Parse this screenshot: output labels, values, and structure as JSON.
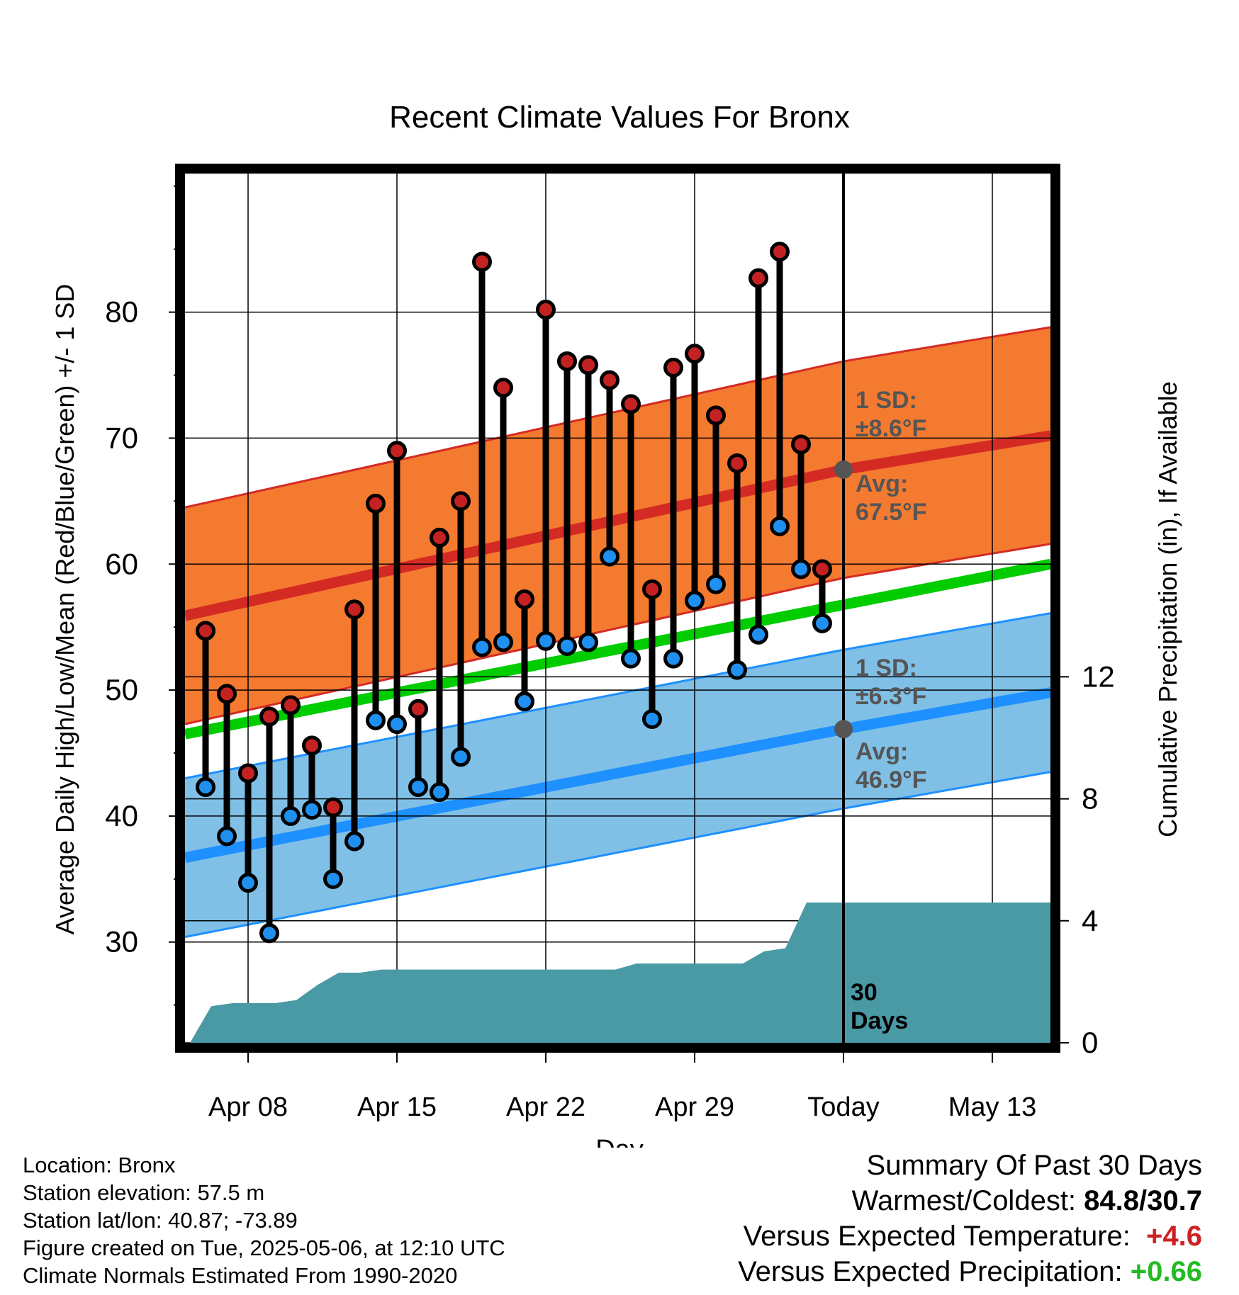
{
  "chart_data": {
    "type": "line",
    "title": "Recent Climate Values For Bronx",
    "xlabel": "Day",
    "ylabel": "Average Daily High/Low/Mean (Red/Blue/Green) +/- 1 SD",
    "y2label": "Cumulative Precipitation (in), If Available",
    "ylim": [
      22,
      91
    ],
    "y2lim": [
      0,
      28.5
    ],
    "yticks": [
      30,
      40,
      50,
      60,
      70,
      80
    ],
    "y2ticks": [
      0,
      4,
      8,
      12
    ],
    "xticks": [
      "Apr 08",
      "Apr 15",
      "Apr 22",
      "Apr 29",
      "Today",
      "May 13"
    ],
    "today_label": "30\nDays",
    "days": [
      "Apr 06",
      "Apr 07",
      "Apr 08",
      "Apr 09",
      "Apr 10",
      "Apr 11",
      "Apr 12",
      "Apr 13",
      "Apr 14",
      "Apr 15",
      "Apr 16",
      "Apr 17",
      "Apr 18",
      "Apr 19",
      "Apr 20",
      "Apr 21",
      "Apr 22",
      "Apr 23",
      "Apr 24",
      "Apr 25",
      "Apr 26",
      "Apr 27",
      "Apr 28",
      "Apr 29",
      "Apr 30",
      "May 01",
      "May 02",
      "May 03",
      "May 04",
      "May 05"
    ],
    "highs": [
      54.7,
      49.7,
      43.4,
      47.9,
      48.8,
      45.6,
      40.7,
      56.4,
      64.8,
      69.0,
      48.5,
      62.1,
      65.0,
      84.0,
      74.0,
      57.2,
      80.2,
      76.1,
      75.8,
      74.6,
      72.7,
      58.0,
      75.6,
      76.7,
      71.8,
      68.0,
      82.7,
      84.8,
      69.5,
      59.6
    ],
    "lows": [
      42.3,
      38.4,
      34.7,
      30.7,
      40.0,
      40.5,
      35.0,
      38.0,
      47.6,
      47.3,
      42.3,
      41.9,
      44.7,
      53.4,
      53.8,
      49.1,
      53.9,
      53.5,
      53.8,
      60.6,
      52.5,
      47.7,
      52.5,
      57.1,
      58.4,
      51.6,
      54.4,
      63.0,
      59.6,
      55.3
    ],
    "normal_high": {
      "start": 55.9,
      "today": 67.5,
      "end": 70.2,
      "sd": 8.6
    },
    "normal_low": {
      "start": 36.7,
      "today": 46.9,
      "end": 49.8,
      "sd": 6.3
    },
    "normal_mean": {
      "start": 46.5,
      "end": 60.0
    },
    "precip_cumulative": [
      0.0,
      1.2,
      1.3,
      1.3,
      1.3,
      1.4,
      1.9,
      2.3,
      2.3,
      2.4,
      2.4,
      2.4,
      2.4,
      2.4,
      2.4,
      2.4,
      2.4,
      2.4,
      2.4,
      2.4,
      2.4,
      2.6,
      2.6,
      2.6,
      2.6,
      2.6,
      2.6,
      3.0,
      3.1,
      4.6,
      4.6
    ],
    "high_note": {
      "sd_label": "1 SD:",
      "sd_value": "±8.6°F",
      "avg_label": "Avg:",
      "avg_value": "67.5°F"
    },
    "low_note": {
      "sd_label": "1 SD:",
      "sd_value": "±6.3°F",
      "avg_label": "Avg:",
      "avg_value": "46.9°F"
    },
    "colors": {
      "high_band": "#f47a30",
      "high_line": "#d42a24",
      "low_band": "#80c0e6",
      "low_line": "#1e90ff",
      "mean_line": "#00cc00",
      "precip": "#4a9aa6",
      "high_dot": "#c42222",
      "low_dot": "#2090f0"
    }
  },
  "info": {
    "location": "Location: Bronx",
    "elevation": "Station elevation: 57.5 m",
    "latlon": "Station lat/lon: 40.87; -73.89",
    "created": "Figure created on Tue, 2025-05-06, at 12:10 UTC",
    "normals": "Climate Normals Estimated From 1990-2020"
  },
  "summary": {
    "heading": "Summary Of Past 30 Days",
    "warmest_label": "Warmest/Coldest:",
    "warmest_value": "84.8/30.7",
    "temp_label": "Versus Expected Temperature:",
    "temp_value": "+4.6",
    "precip_label": "Versus Expected Precipitation:",
    "precip_value": "+0.66"
  }
}
